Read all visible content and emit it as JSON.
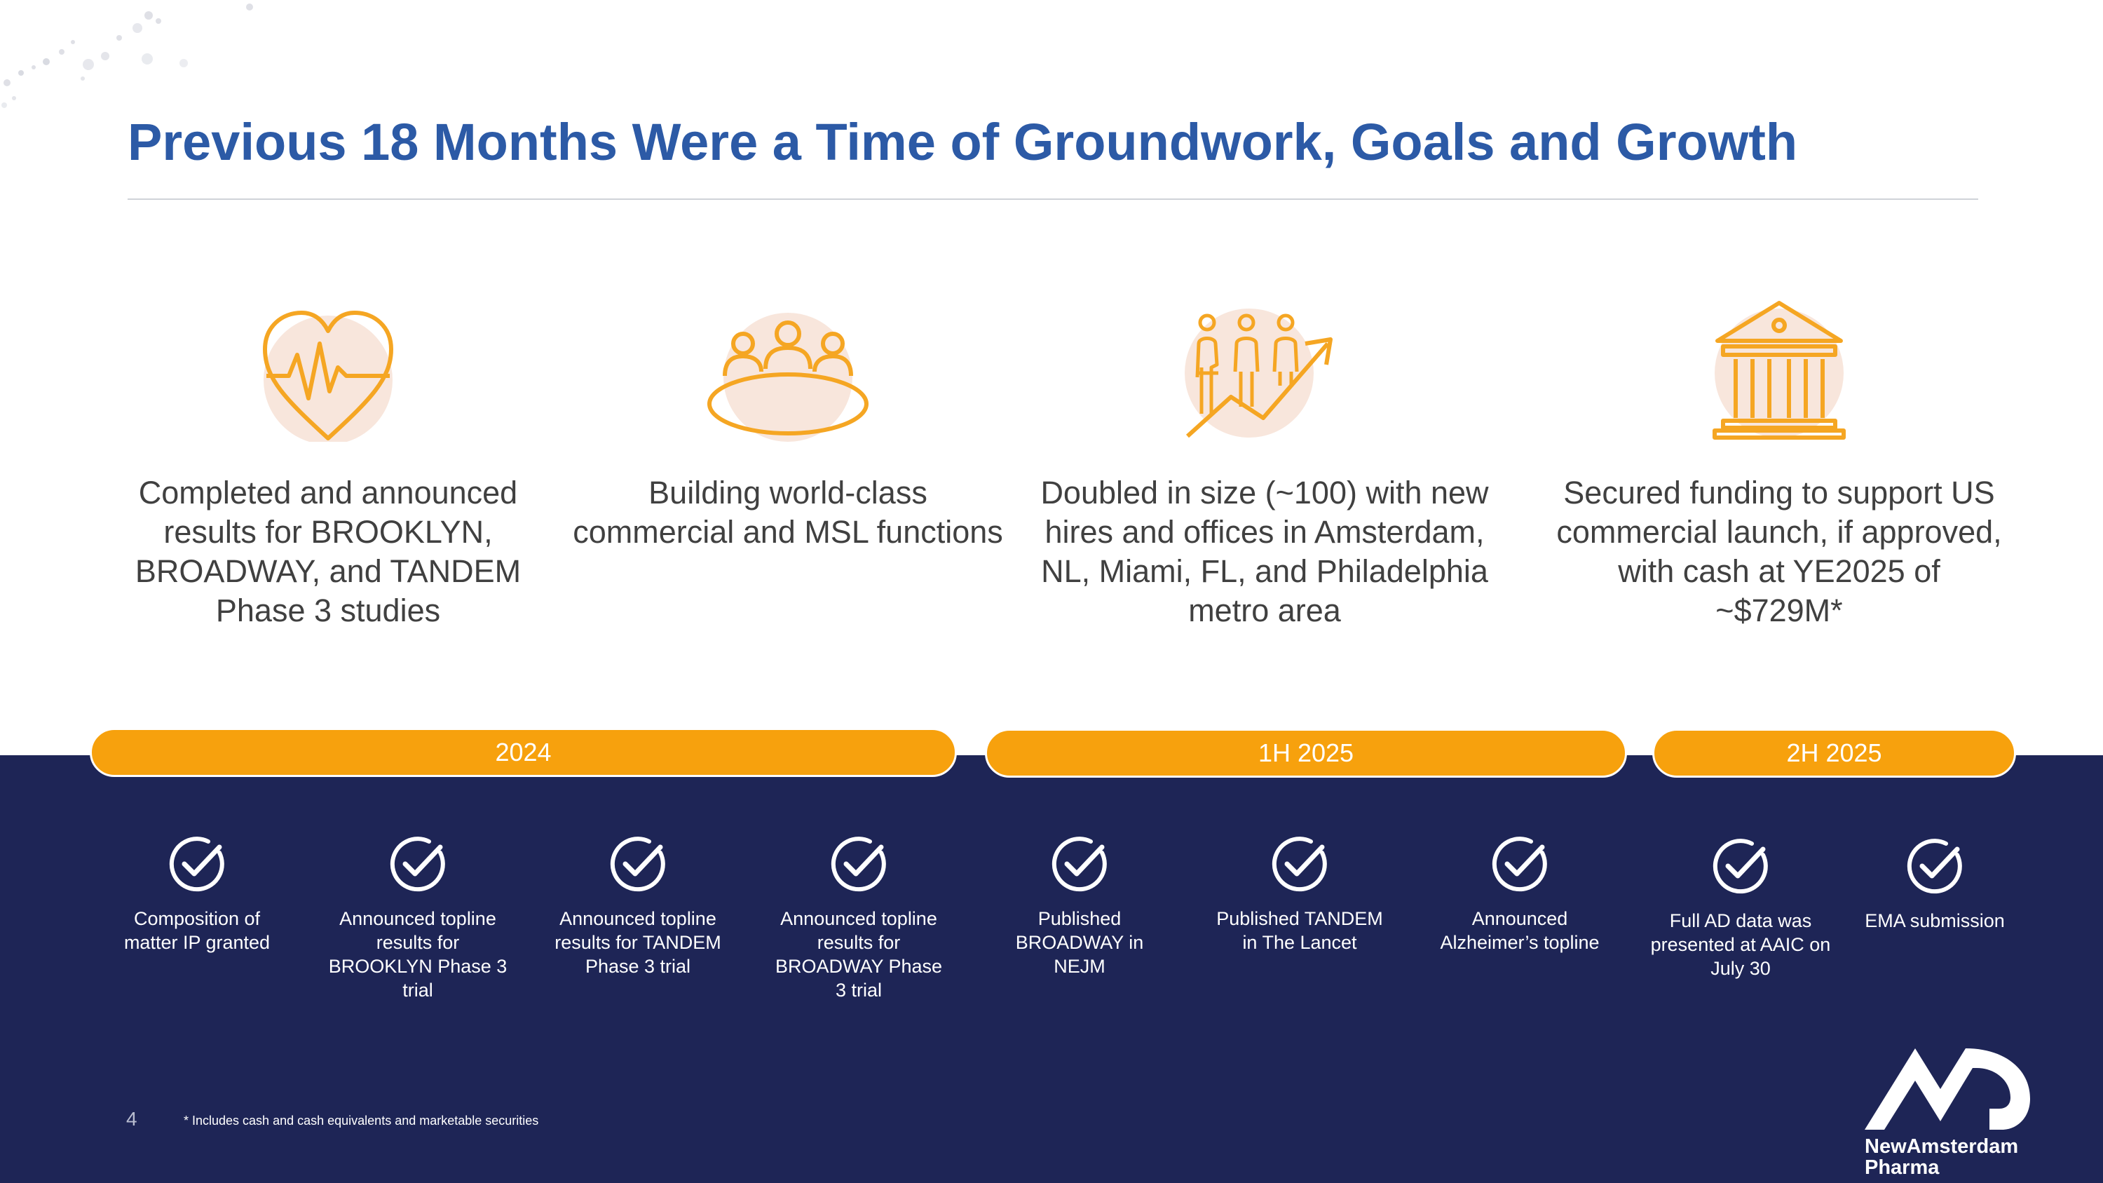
{
  "slide": {
    "title": "Previous 18 Months Were a Time of Groundwork, Goals and Growth",
    "page_number": "4",
    "footnote": "* Includes cash and cash equivalents and marketable securities"
  },
  "pillars": [
    {
      "icon": "heartbeat-icon",
      "text": "Completed and announced results for BROOKLYN, BROADWAY, and TANDEM Phase 3 studies"
    },
    {
      "icon": "team-meeting-icon",
      "text": "Building world-class commercial and MSL functions"
    },
    {
      "icon": "people-growth-icon",
      "text": "Doubled in size (~100) with new hires and offices in Amsterdam, NL, Miami, FL, and Philadelphia metro area"
    },
    {
      "icon": "bank-building-icon",
      "text": "Secured funding to support US commercial launch, if approved, with cash at YE2025 of ~$729M*"
    }
  ],
  "timeline": {
    "periods": [
      {
        "label": "2024"
      },
      {
        "label": "1H 2025"
      },
      {
        "label": "2H 2025"
      }
    ],
    "milestones": [
      {
        "icon": "checkmark-circle-icon",
        "label": "Composition of matter IP granted"
      },
      {
        "icon": "checkmark-circle-icon",
        "label": "Announced topline results for BROOKLYN Phase 3 trial"
      },
      {
        "icon": "checkmark-circle-icon",
        "label": "Announced topline results for TANDEM Phase 3 trial"
      },
      {
        "icon": "checkmark-circle-icon",
        "label": "Announced topline results for BROADWAY Phase 3 trial"
      },
      {
        "icon": "checkmark-circle-icon",
        "label": "Published BROADWAY in NEJM"
      },
      {
        "icon": "checkmark-circle-icon",
        "label": "Published TANDEM in The Lancet"
      },
      {
        "icon": "checkmark-circle-icon",
        "label": "Announced Alzheimer’s topline"
      },
      {
        "icon": "checkmark-circle-icon",
        "label": "Full AD data was presented at AAIC on July 30"
      },
      {
        "icon": "checkmark-circle-icon",
        "label": "EMA submission"
      }
    ]
  },
  "logo": {
    "line1": "NewAmsterdam",
    "line2": "Pharma"
  },
  "colors": {
    "title": "#2c5aa6",
    "accent": "#f7a10d",
    "navy": "#1e2556",
    "icon_bg": "#f8e6dc"
  }
}
